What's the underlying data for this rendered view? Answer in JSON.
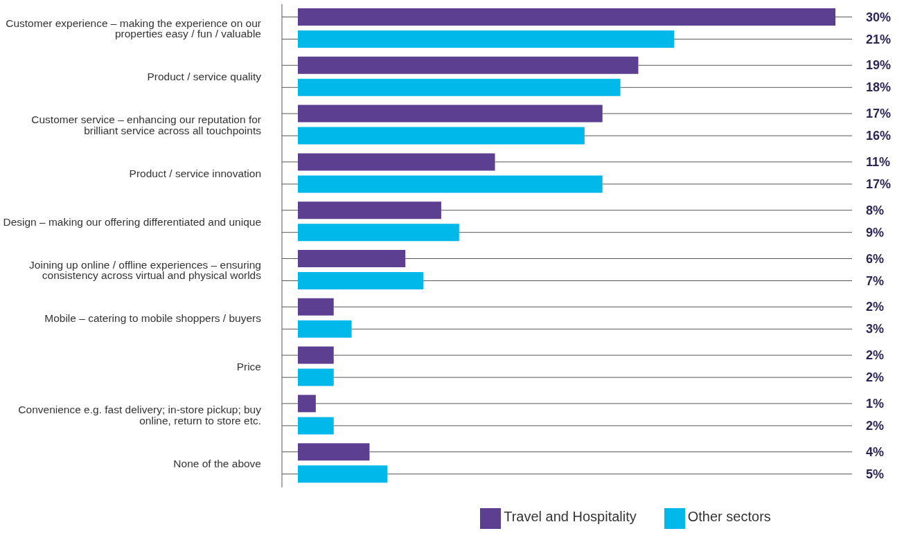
{
  "chart_data": {
    "type": "bar",
    "orientation": "horizontal",
    "legend": "bottom",
    "categories": [
      "Customer experience – making the experience on our properties easy / fun / valuable",
      "Product / service quality",
      "Customer service – enhancing our reputation for brilliant service across all touchpoints",
      "Product / service innovation",
      "Design – making our offering differentiated and unique",
      "Joining up online / offline experiences – ensuring consistency across virtual and physical worlds",
      "Mobile – catering to mobile shoppers / buyers",
      "Price",
      "Convenience e.g. fast delivery; in-store pickup; buy online, return to store etc.",
      "None of the above"
    ],
    "series": [
      {
        "name": "Travel and Hospitality",
        "color": "#5c3f91",
        "values": [
          30,
          19,
          17,
          11,
          8,
          6,
          2,
          2,
          1,
          4
        ],
        "value_labels": [
          "30%",
          "19%",
          "17%",
          "11%",
          "8%",
          "6%",
          "2%",
          "2%",
          "1%",
          "4%"
        ]
      },
      {
        "name": "Other sectors",
        "color": "#00b8ea",
        "values": [
          21,
          18,
          16,
          17,
          9,
          7,
          3,
          2,
          2,
          5
        ],
        "value_labels": [
          "21%",
          "18%",
          "16%",
          "17%",
          "9%",
          "7%",
          "3%",
          "2%",
          "2%",
          "5%"
        ]
      }
    ]
  }
}
